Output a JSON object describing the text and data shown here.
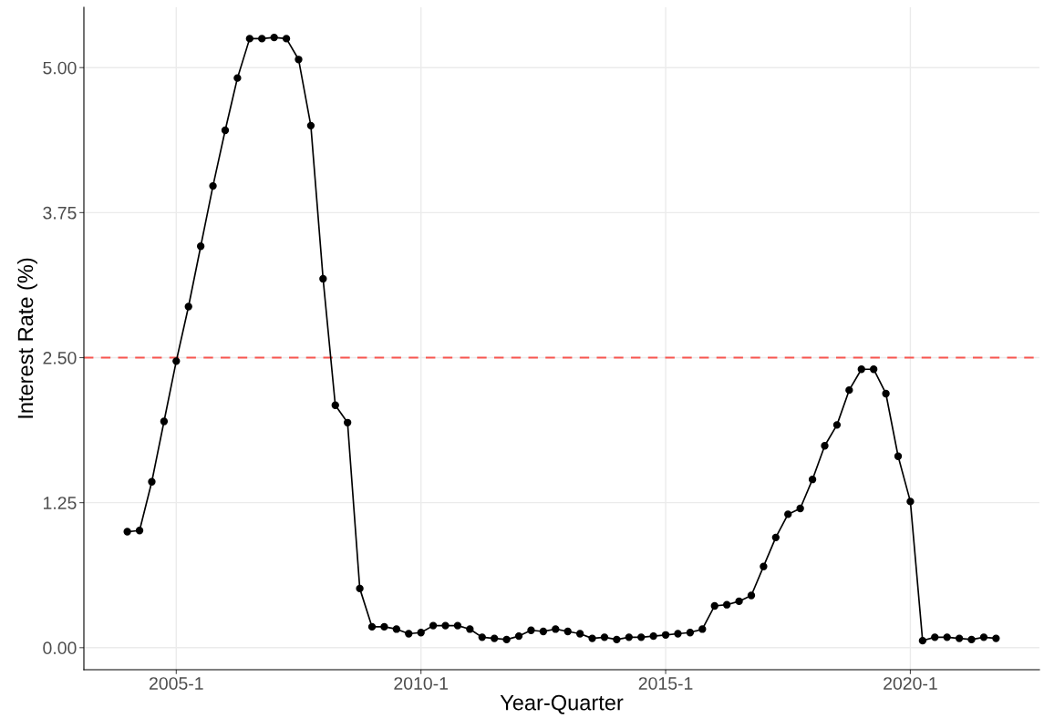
{
  "chart_data": {
    "type": "line",
    "xlabel": "Year-Quarter",
    "ylabel": "Interest Rate (%)",
    "categories": [
      null,
      null,
      null,
      null,
      "2005-1",
      null,
      null,
      null,
      null,
      null,
      null,
      null,
      null,
      null,
      null,
      null,
      null,
      null,
      null,
      null,
      null,
      null,
      null,
      null,
      "2010-1",
      null,
      null,
      null,
      null,
      null,
      null,
      null,
      null,
      null,
      null,
      null,
      null,
      null,
      null,
      null,
      null,
      null,
      null,
      null,
      "2015-1",
      null,
      null,
      null,
      null,
      null,
      null,
      null,
      null,
      null,
      null,
      null,
      null,
      null,
      null,
      null,
      null,
      null,
      null,
      null,
      "2020-1",
      null,
      null,
      null,
      null,
      null,
      null,
      null
    ],
    "series": [
      {
        "color": "#000000",
        "values": [
          1.0,
          1.01,
          1.43,
          1.95,
          2.47,
          2.94,
          3.46,
          3.98,
          4.46,
          4.91,
          5.25,
          5.25,
          5.26,
          5.25,
          5.07,
          4.5,
          3.18,
          2.09,
          1.94,
          0.51,
          0.18,
          0.18,
          0.16,
          0.12,
          0.13,
          0.19,
          0.19,
          0.19,
          0.16,
          0.09,
          0.08,
          0.07,
          0.1,
          0.15,
          0.14,
          0.16,
          0.14,
          0.12,
          0.08,
          0.09,
          0.07,
          0.09,
          0.09,
          0.1,
          0.11,
          0.12,
          0.13,
          0.16,
          0.36,
          0.37,
          0.4,
          0.45,
          0.7,
          0.95,
          1.15,
          1.2,
          1.45,
          1.74,
          1.92,
          2.22,
          2.4,
          2.4,
          2.19,
          1.65,
          1.26,
          0.06,
          0.09,
          0.09,
          0.08,
          0.07,
          0.09,
          0.08
        ]
      }
    ],
    "ylim": [
      -0.19,
      5.52
    ],
    "yticks": [
      {
        "value": 0,
        "label": "0.00"
      },
      {
        "value": 1.25,
        "label": "1.25"
      },
      {
        "value": 2.5,
        "label": "2.50"
      },
      {
        "value": 3.75,
        "label": "3.75"
      },
      {
        "value": 5,
        "label": "5.00"
      }
    ],
    "ref_lines": [
      {
        "axis": "y",
        "value": 2.5,
        "color": "#f8554f",
        "line_style": "dashed"
      }
    ],
    "grid": true,
    "marker": "circle",
    "line_style": "solid"
  }
}
